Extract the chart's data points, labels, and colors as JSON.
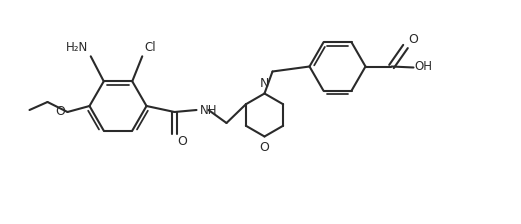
{
  "bg_color": "#ffffff",
  "line_color": "#2a2a2a",
  "line_width": 1.5,
  "font_size": 8.5,
  "figsize": [
    5.21,
    2.24
  ],
  "dpi": 100,
  "xlim": [
    0,
    5.21
  ],
  "ylim": [
    0,
    2.24
  ]
}
